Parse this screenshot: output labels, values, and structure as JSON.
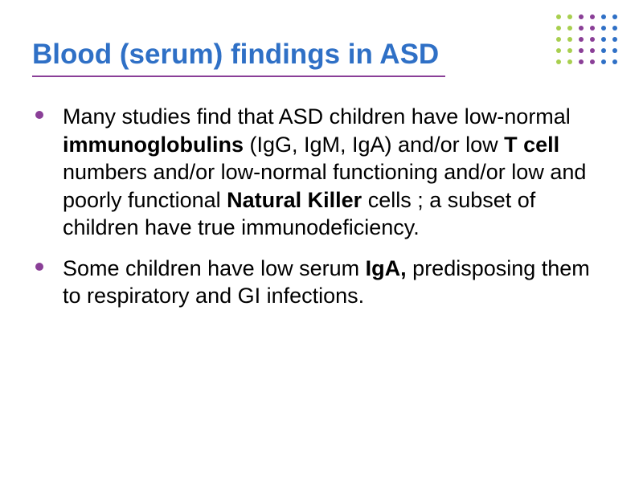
{
  "title": {
    "text": "Blood (serum) findings in ASD",
    "color": "#2f70c6",
    "fontsize": 35,
    "underline_color": "#8a3f97"
  },
  "body": {
    "fontsize": 27,
    "color": "#000000",
    "bullet_color": "#8a3f97",
    "items": [
      {
        "segments": [
          {
            "t": "Many studies find that ASD children have low-normal ",
            "b": false
          },
          {
            "t": "immunoglobulins",
            "b": true
          },
          {
            "t": " (IgG, IgM, IgA) and/or low ",
            "b": false
          },
          {
            "t": "T cell",
            "b": true
          },
          {
            "t": " numbers and/or low-normal functioning and/or low and poorly functional ",
            "b": false
          },
          {
            "t": "Natural Killer",
            "b": true
          },
          {
            "t": " cells ; a subset of children have true immunodeficiency.",
            "b": false
          }
        ]
      },
      {
        "segments": [
          {
            "t": "Some children have low serum ",
            "b": false
          },
          {
            "t": "IgA,",
            "b": true
          },
          {
            "t": " predisposing them to respiratory and GI infections.",
            "b": false
          }
        ]
      }
    ]
  },
  "decoration": {
    "dot_rows": 5,
    "dot_cols": 6,
    "dot_colors": [
      "#a8cf4f",
      "#8a3f97",
      "#2f70c6"
    ]
  }
}
